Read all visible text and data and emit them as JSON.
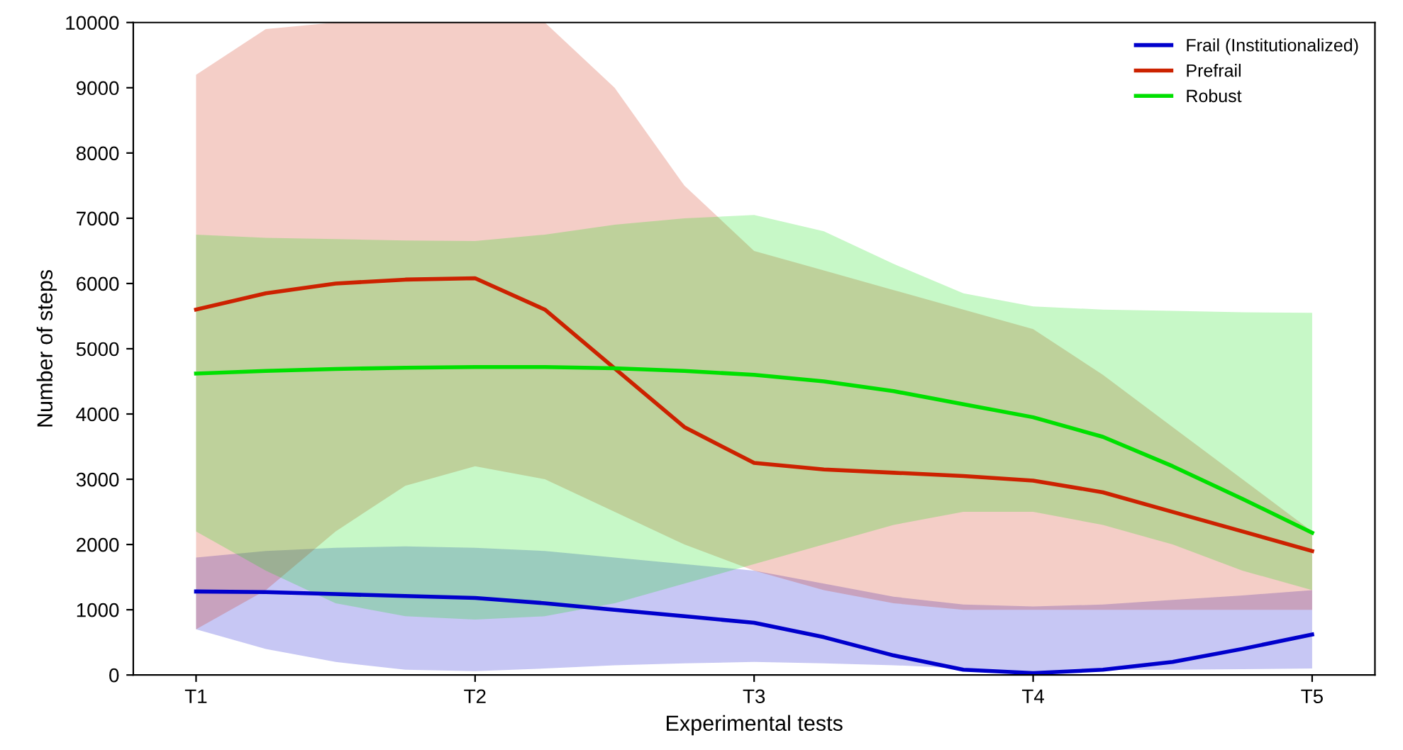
{
  "chart_data": {
    "type": "line",
    "xlabel": "Experimental tests",
    "ylabel": "Number of steps",
    "categories": [
      "T1",
      null,
      null,
      null,
      "T2",
      null,
      null,
      null,
      "T3",
      null,
      null,
      null,
      "T4",
      null,
      null,
      null,
      "T5"
    ],
    "series": [
      {
        "name": "Frail (Institutionalized)",
        "color": "#0000cc",
        "values": [
          1280,
          1270,
          1240,
          1210,
          1180,
          1100,
          1000,
          900,
          800,
          580,
          300,
          80,
          30,
          80,
          200,
          400,
          620
        ],
        "lower": [
          700,
          400,
          200,
          80,
          60,
          100,
          150,
          180,
          200,
          180,
          150,
          100,
          0,
          80,
          80,
          90,
          100
        ],
        "upper": [
          1800,
          1900,
          1950,
          1970,
          1950,
          1900,
          1800,
          1700,
          1600,
          1400,
          1200,
          1080,
          1050,
          1080,
          1150,
          1220,
          1300
        ]
      },
      {
        "name": "Prefrail",
        "color": "#cc2200",
        "values": [
          5600,
          5850,
          6000,
          6060,
          6080,
          5600,
          4700,
          3800,
          3250,
          3150,
          3100,
          3050,
          2980,
          2800,
          2500,
          2200,
          1900
        ],
        "lower": [
          700,
          1300,
          2200,
          2900,
          3200,
          3000,
          2500,
          2000,
          1600,
          1300,
          1100,
          1000,
          1000,
          1000,
          1000,
          1000,
          1000
        ],
        "upper": [
          9200,
          9900,
          10000,
          10000,
          10000,
          10000,
          9000,
          7500,
          6500,
          6200,
          5900,
          5600,
          5300,
          4600,
          3800,
          3000,
          2200
        ]
      },
      {
        "name": "Robust",
        "color": "#00e000",
        "values": [
          4620,
          4660,
          4690,
          4710,
          4720,
          4720,
          4700,
          4660,
          4600,
          4500,
          4350,
          4150,
          3950,
          3650,
          3200,
          2700,
          2180
        ],
        "lower": [
          2200,
          1600,
          1100,
          900,
          850,
          900,
          1100,
          1400,
          1700,
          2000,
          2300,
          2500,
          2500,
          2300,
          2000,
          1600,
          1300
        ],
        "upper": [
          6750,
          6700,
          6680,
          6660,
          6650,
          6750,
          6900,
          7000,
          7050,
          6800,
          6300,
          5850,
          5650,
          5600,
          5580,
          5560,
          5550
        ]
      }
    ],
    "ylim": [
      0,
      10000
    ],
    "yticks": [
      0,
      1000,
      2000,
      3000,
      4000,
      5000,
      6000,
      7000,
      8000,
      9000,
      10000
    ],
    "legend": "top right",
    "grid": false,
    "line_style": "solid",
    "marker": "none"
  }
}
